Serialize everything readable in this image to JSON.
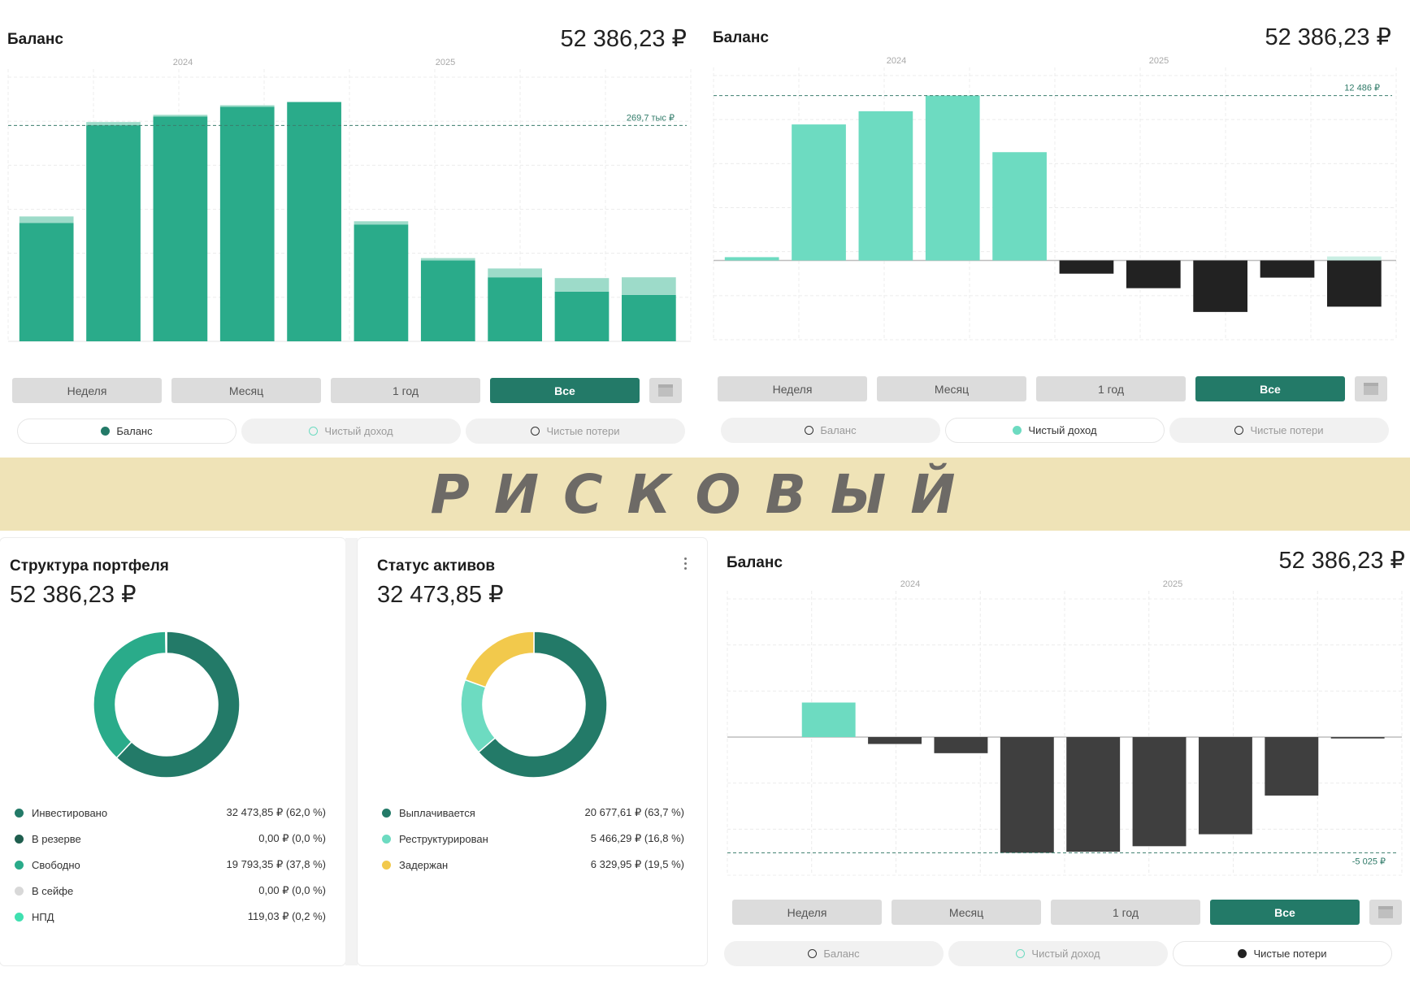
{
  "colors": {
    "accent": "#237a68",
    "bar_green": "#2aab8a",
    "bar_green_light": "#9ddbc9",
    "bar_mint": "#6ddbc1",
    "bar_black": "#222222",
    "bar_dark": "#3f3f3f",
    "banner": "#efe3b7"
  },
  "banner": {
    "text": "РИСКОВЫЙ"
  },
  "panels": [
    {
      "title": "Баланс",
      "amount": "52 386,23 ₽",
      "tabs": [
        "Неделя",
        "Месяц",
        "1 год",
        "Все"
      ],
      "active_tab": "Все",
      "legend": [
        "Баланс",
        "Чистый доход",
        "Чистые потери"
      ],
      "active_legend": "Баланс"
    },
    {
      "title": "Баланс",
      "amount": "52 386,23 ₽",
      "tabs": [
        "Неделя",
        "Месяц",
        "1 год",
        "Все"
      ],
      "active_tab": "Все",
      "legend": [
        "Баланс",
        "Чистый доход",
        "Чистые потери"
      ],
      "active_legend": "Чистый доход"
    },
    {
      "title": "Баланс",
      "amount": "52 386,23 ₽",
      "tabs": [
        "Неделя",
        "Месяц",
        "1 год",
        "Все"
      ],
      "active_tab": "Все",
      "legend": [
        "Баланс",
        "Чистый доход",
        "Чистые потери"
      ],
      "active_legend": "Чистые потери"
    }
  ],
  "chart_data": [
    {
      "type": "bar",
      "x_labels": [
        "2024",
        "2025"
      ],
      "reference_line": {
        "value": 269.7,
        "label": "269,7 тыс ₽"
      },
      "ylim": [
        0,
        330
      ],
      "values": [
        148,
        270,
        281,
        293,
        299,
        146,
        101,
        80,
        62,
        58
      ],
      "overlay_values": [
        8,
        4,
        2,
        2,
        0,
        4,
        3,
        11,
        17,
        22
      ],
      "grid": true
    },
    {
      "type": "bar",
      "x_labels": [
        "2024",
        "2025"
      ],
      "reference_line": {
        "value": 12486,
        "label": "12 486 ₽"
      },
      "ylim": [
        -6000,
        14000
      ],
      "values": [
        250,
        10300,
        11300,
        12486,
        8200,
        -1000,
        -2100,
        -3900,
        -1300,
        -3500
      ],
      "last_positive_overlay": 300,
      "grid": true
    },
    {
      "type": "bar",
      "x_labels": [
        "2024",
        "2025"
      ],
      "reference_line": {
        "value": -5025,
        "label": "-5 025 ₽"
      },
      "ylim": [
        -6000,
        6000
      ],
      "values": [
        1500,
        -300,
        -700,
        -5025,
        -4980,
        -4740,
        -4220,
        -2540,
        -60
      ],
      "grid": true
    },
    {
      "type": "pie",
      "title": "Структура портфеля",
      "amount": "52 386,23 ₽",
      "slices": [
        {
          "name": "Инвестировано",
          "value": 62.0,
          "text": "32 473,85 ₽ (62,0 %)",
          "color": "#237a68"
        },
        {
          "name": "В резерве",
          "value": 0.0,
          "text": "0,00 ₽ (0,0 %)",
          "color": "#1f5e4e"
        },
        {
          "name": "Свободно",
          "value": 37.8,
          "text": "19 793,35 ₽ (37,8 %)",
          "color": "#2aab8a"
        },
        {
          "name": "В сейфе",
          "value": 0.0,
          "text": "0,00 ₽ (0,0 %)",
          "color": "#d8d8d8"
        },
        {
          "name": "НПД",
          "value": 0.2,
          "text": "119,03 ₽ (0,2 %)",
          "color": "#3fe0b0"
        }
      ]
    },
    {
      "type": "pie",
      "title": "Статус активов",
      "amount": "32 473,85 ₽",
      "slices": [
        {
          "name": "Выплачивается",
          "value": 63.7,
          "text": "20 677,61 ₽ (63,7 %)",
          "color": "#237a68"
        },
        {
          "name": "Реструктурирован",
          "value": 16.8,
          "text": "5 466,29 ₽ (16,8 %)",
          "color": "#6ddbc1"
        },
        {
          "name": "Задержан",
          "value": 19.5,
          "text": "6 329,95 ₽ (19,5 %)",
          "color": "#f2c94c"
        }
      ]
    }
  ]
}
